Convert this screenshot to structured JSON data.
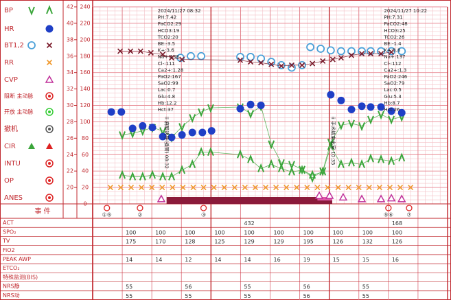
{
  "chart_data": {
    "type": "line",
    "xlim": [
      0,
      12
    ],
    "ylim": [
      0,
      240
    ],
    "yticks": [
      0,
      20,
      40,
      60,
      80,
      100,
      120,
      140,
      160,
      180,
      200,
      220,
      240
    ],
    "y2lim": [
      18,
      42
    ],
    "y2ticks": [
      20,
      22,
      24,
      26,
      28,
      30,
      32,
      34,
      36,
      38,
      40,
      42
    ],
    "grid": true,
    "legend": [
      {
        "label": "BP",
        "symbols": [
          {
            "marker": "v",
            "color": "#3aa53a"
          },
          {
            "marker": "caret",
            "color": "#3aa53a"
          }
        ]
      },
      {
        "label": "HR",
        "symbols": [
          {
            "marker": "dot",
            "color": "#1f3fc6"
          }
        ]
      },
      {
        "label": "BT1,2",
        "symbols": [
          {
            "marker": "circle",
            "color": "#4aa0d8"
          },
          {
            "marker": "x",
            "color": "#7a1a2a"
          }
        ]
      },
      {
        "label": "RR",
        "symbols": [
          {
            "marker": "x",
            "color": "#f09a30"
          }
        ]
      },
      {
        "label": "CVP",
        "symbols": [
          {
            "marker": "triangle",
            "color": "#c0309a"
          }
        ]
      },
      {
        "label": "阻断 主动脉",
        "symbols": [
          {
            "marker": "target",
            "color": "#d22"
          }
        ]
      },
      {
        "label": "开放 主动脉",
        "symbols": [
          {
            "marker": "target",
            "color": "#3c3"
          }
        ]
      },
      {
        "label": "撤机",
        "symbols": [
          {
            "marker": "target",
            "color": "#555"
          }
        ]
      },
      {
        "label": "CIR",
        "symbols": [
          {
            "marker": "filltri",
            "color": "#3aa53a"
          },
          {
            "marker": "filltri",
            "color": "#d22"
          }
        ]
      },
      {
        "label": "INTU",
        "symbols": [
          {
            "marker": "target",
            "color": "#d22"
          }
        ]
      },
      {
        "label": "OP",
        "symbols": [
          {
            "marker": "target",
            "color": "#d22"
          }
        ]
      },
      {
        "label": "ANES",
        "symbols": [
          {
            "marker": "target",
            "color": "#d22"
          }
        ]
      }
    ],
    "series": [
      {
        "marker": "v",
        "color": "#3aa53a",
        "connect": true,
        "x": [
          1.0,
          1.35,
          1.69,
          2.02,
          2.37,
          2.67,
          3.02,
          3.37,
          3.67,
          3.99,
          4.99,
          5.34,
          5.69,
          6.04,
          6.38,
          6.73,
          7.08,
          7.43,
          7.78,
          8.05,
          8.4,
          8.75,
          9.1,
          9.4,
          9.75,
          10.1,
          10.45
        ],
        "values": [
          84,
          86,
          89,
          93,
          89,
          81,
          94,
          105,
          112,
          117,
          118,
          110,
          119,
          73,
          50,
          48,
          42,
          32,
          40,
          75,
          96,
          98,
          95,
          103,
          109,
          103,
          106
        ]
      },
      {
        "marker": "caret",
        "color": "#3aa53a",
        "connect": true,
        "x": [
          1.0,
          1.35,
          1.69,
          2.02,
          2.37,
          2.67,
          3.02,
          3.37,
          3.67,
          3.99,
          4.99,
          5.34,
          5.69,
          6.04,
          6.38,
          6.73,
          7.08,
          7.43,
          7.78,
          8.05,
          8.4,
          8.75,
          9.1,
          9.4,
          9.75,
          10.1,
          10.45
        ],
        "values": [
          35,
          33,
          33,
          35,
          33,
          33,
          41,
          48,
          63,
          63,
          60,
          54,
          43,
          48,
          43,
          39,
          41,
          35,
          39,
          70,
          48,
          50,
          48,
          55,
          54,
          52,
          56
        ]
      },
      {
        "marker": "dot",
        "color": "#1f3fc6",
        "connect": false,
        "x": [
          0.63,
          0.97,
          1.35,
          1.69,
          2.02,
          2.37,
          2.67,
          3.02,
          3.37,
          3.71,
          4.02,
          4.99,
          5.34,
          5.69,
          8.05,
          8.4,
          8.75,
          9.1,
          9.4,
          9.75,
          10.1,
          10.45
        ],
        "values": [
          112,
          112,
          92,
          95,
          93,
          82,
          81,
          84,
          87,
          87,
          89,
          116,
          121,
          120,
          133,
          126,
          115,
          119,
          118,
          118,
          113,
          111
        ]
      },
      {
        "marker": "circle",
        "color": "#4aa0d8",
        "connect": false,
        "axis": "y2",
        "x": [
          2.97,
          3.32,
          3.67,
          4.99,
          5.34,
          5.69,
          6.04,
          6.38,
          6.73,
          7.08,
          7.36,
          7.71,
          8.05,
          8.4,
          8.75,
          9.1,
          9.4,
          9.75,
          10.1,
          10.45
        ],
        "values": [
          35.8,
          36.0,
          36.0,
          35.9,
          35.9,
          35.7,
          35.3,
          34.9,
          34.6,
          34.9,
          37.1,
          36.9,
          36.7,
          36.6,
          36.6,
          36.6,
          36.6,
          36.6,
          36.6,
          36.6
        ]
      },
      {
        "marker": "x",
        "color": "#7a1a2a",
        "connect": true,
        "axis": "y2",
        "x": [
          0.93,
          1.28,
          1.62,
          1.97,
          2.37,
          2.67,
          3.02,
          4.99,
          5.34,
          5.69,
          6.04,
          6.38,
          6.73,
          7.08,
          7.43,
          7.78,
          8.12,
          8.4,
          8.75,
          9.1,
          9.4,
          9.75,
          10.1
        ],
        "values": [
          36.6,
          36.6,
          36.6,
          36.4,
          36.2,
          35.8,
          35.6,
          35.5,
          35.3,
          35.2,
          35.0,
          34.8,
          34.9,
          34.9,
          35.1,
          35.4,
          35.6,
          35.8,
          36.1,
          36.3,
          36.3,
          36.3,
          36.5
        ]
      },
      {
        "marker": "x",
        "color": "#f09a30",
        "connect": false,
        "x": [
          0.6,
          0.95,
          1.3,
          1.65,
          2.0,
          2.35,
          2.7,
          3.05,
          3.4,
          3.75,
          4.1,
          4.45,
          4.8,
          5.15,
          5.5,
          5.85,
          6.2,
          6.55,
          6.9,
          7.25,
          7.6,
          7.95,
          8.3,
          8.65,
          9.0,
          9.35,
          9.7,
          10.05,
          10.4,
          10.75
        ],
        "values": [
          20,
          20,
          20,
          20,
          20,
          20,
          20,
          20,
          20,
          20,
          20,
          20,
          20,
          20,
          20,
          20,
          20,
          20,
          20,
          20,
          20,
          20,
          20,
          20,
          20,
          20,
          20,
          20,
          20,
          20
        ]
      },
      {
        "marker": "triangle",
        "color": "#c0309a",
        "connect": false,
        "x": [
          2.32,
          7.66,
          8.01,
          8.47,
          9.1,
          9.75,
          10.1,
          10.45
        ],
        "values": [
          6,
          10,
          10,
          8,
          6,
          6,
          7,
          6
        ]
      }
    ],
    "annotations": [
      {
        "x": 2.2,
        "lines": [
          "2024/11/27 08:32",
          "PH:7.42",
          "PaCO2:29",
          "HCO3:19",
          "TCO2:20",
          "BE:-3.5",
          "K+:3.6",
          "Na+:138",
          "Cl-:111",
          "Ca2+:1.28",
          "PaO2:167",
          "SaO2:99",
          "Lac:0.7",
          "Glu:4.8",
          "Hb:12.2",
          "Hct:37"
        ]
      },
      {
        "x": 9.85,
        "lines": [
          "2024/11/27 10:22",
          "PH:7.31",
          "PaCO2:48",
          "HCO3:25",
          "TCO2:26",
          "BE:-1.4",
          "K+:3.8",
          "Na+:137",
          "Cl-:112",
          "Ca2+:1.3",
          "PaO2:246",
          "SaO2:79",
          "Lac:0.5",
          "Glu:5.3",
          "Hb:8.7",
          "Hct:26"
        ]
      }
    ],
    "vertical_notes": [
      {
        "x": 2.5,
        "text": "ii 麻醉诱导(插管) 08:32"
      },
      {
        "x": 8.12,
        "text": "ii 手术结束出室 10:35"
      }
    ],
    "events": {
      "label": "事 件",
      "items": [
        {
          "x": 0.48,
          "label": "①⑤"
        },
        {
          "x": 1.6,
          "label": "②"
        },
        {
          "x": 3.75,
          "label": "③"
        },
        {
          "x": 10.0,
          "label": "⑤⑥"
        },
        {
          "x": 10.7,
          "label": "⑦"
        }
      ]
    }
  },
  "table": {
    "rows": [
      {
        "label": "ACT",
        "cells": [
          null,
          null,
          null,
          null,
          null,
          "432",
          null,
          null,
          null,
          null,
          "168",
          null
        ]
      },
      {
        "label": "SPO₂",
        "cells": [
          null,
          "100",
          "100",
          "100",
          "100",
          "100",
          "100",
          "100",
          "100",
          "100",
          "100",
          null
        ]
      },
      {
        "label": "TV",
        "cells": [
          null,
          "175",
          "170",
          "128",
          "125",
          "129",
          "129",
          "195",
          "126",
          "132",
          "126",
          null
        ]
      },
      {
        "label": "FiO2",
        "cells": [
          null,
          null,
          null,
          null,
          null,
          null,
          null,
          null,
          null,
          null,
          null,
          null
        ]
      },
      {
        "label": "PEAK AWP",
        "cells": [
          null,
          "14",
          "14",
          "12",
          "14",
          "14",
          "16",
          "19",
          "15",
          "15",
          "16",
          null
        ]
      },
      {
        "label": "ETCO₂",
        "cells": [
          null,
          null,
          null,
          null,
          null,
          null,
          null,
          null,
          null,
          null,
          null,
          null
        ]
      },
      {
        "label": "特殊监测(BIS)",
        "cells": [
          null,
          null,
          null,
          null,
          null,
          null,
          null,
          null,
          null,
          null,
          null,
          null
        ]
      },
      {
        "label": "NRS静",
        "cells": [
          null,
          "55",
          null,
          "56",
          null,
          "55",
          null,
          "56",
          null,
          "55",
          null,
          null
        ]
      },
      {
        "label": "NRS动",
        "cells": [
          null,
          "55",
          null,
          "55",
          null,
          "55",
          null,
          "56",
          null,
          "55",
          null,
          null
        ]
      }
    ]
  }
}
